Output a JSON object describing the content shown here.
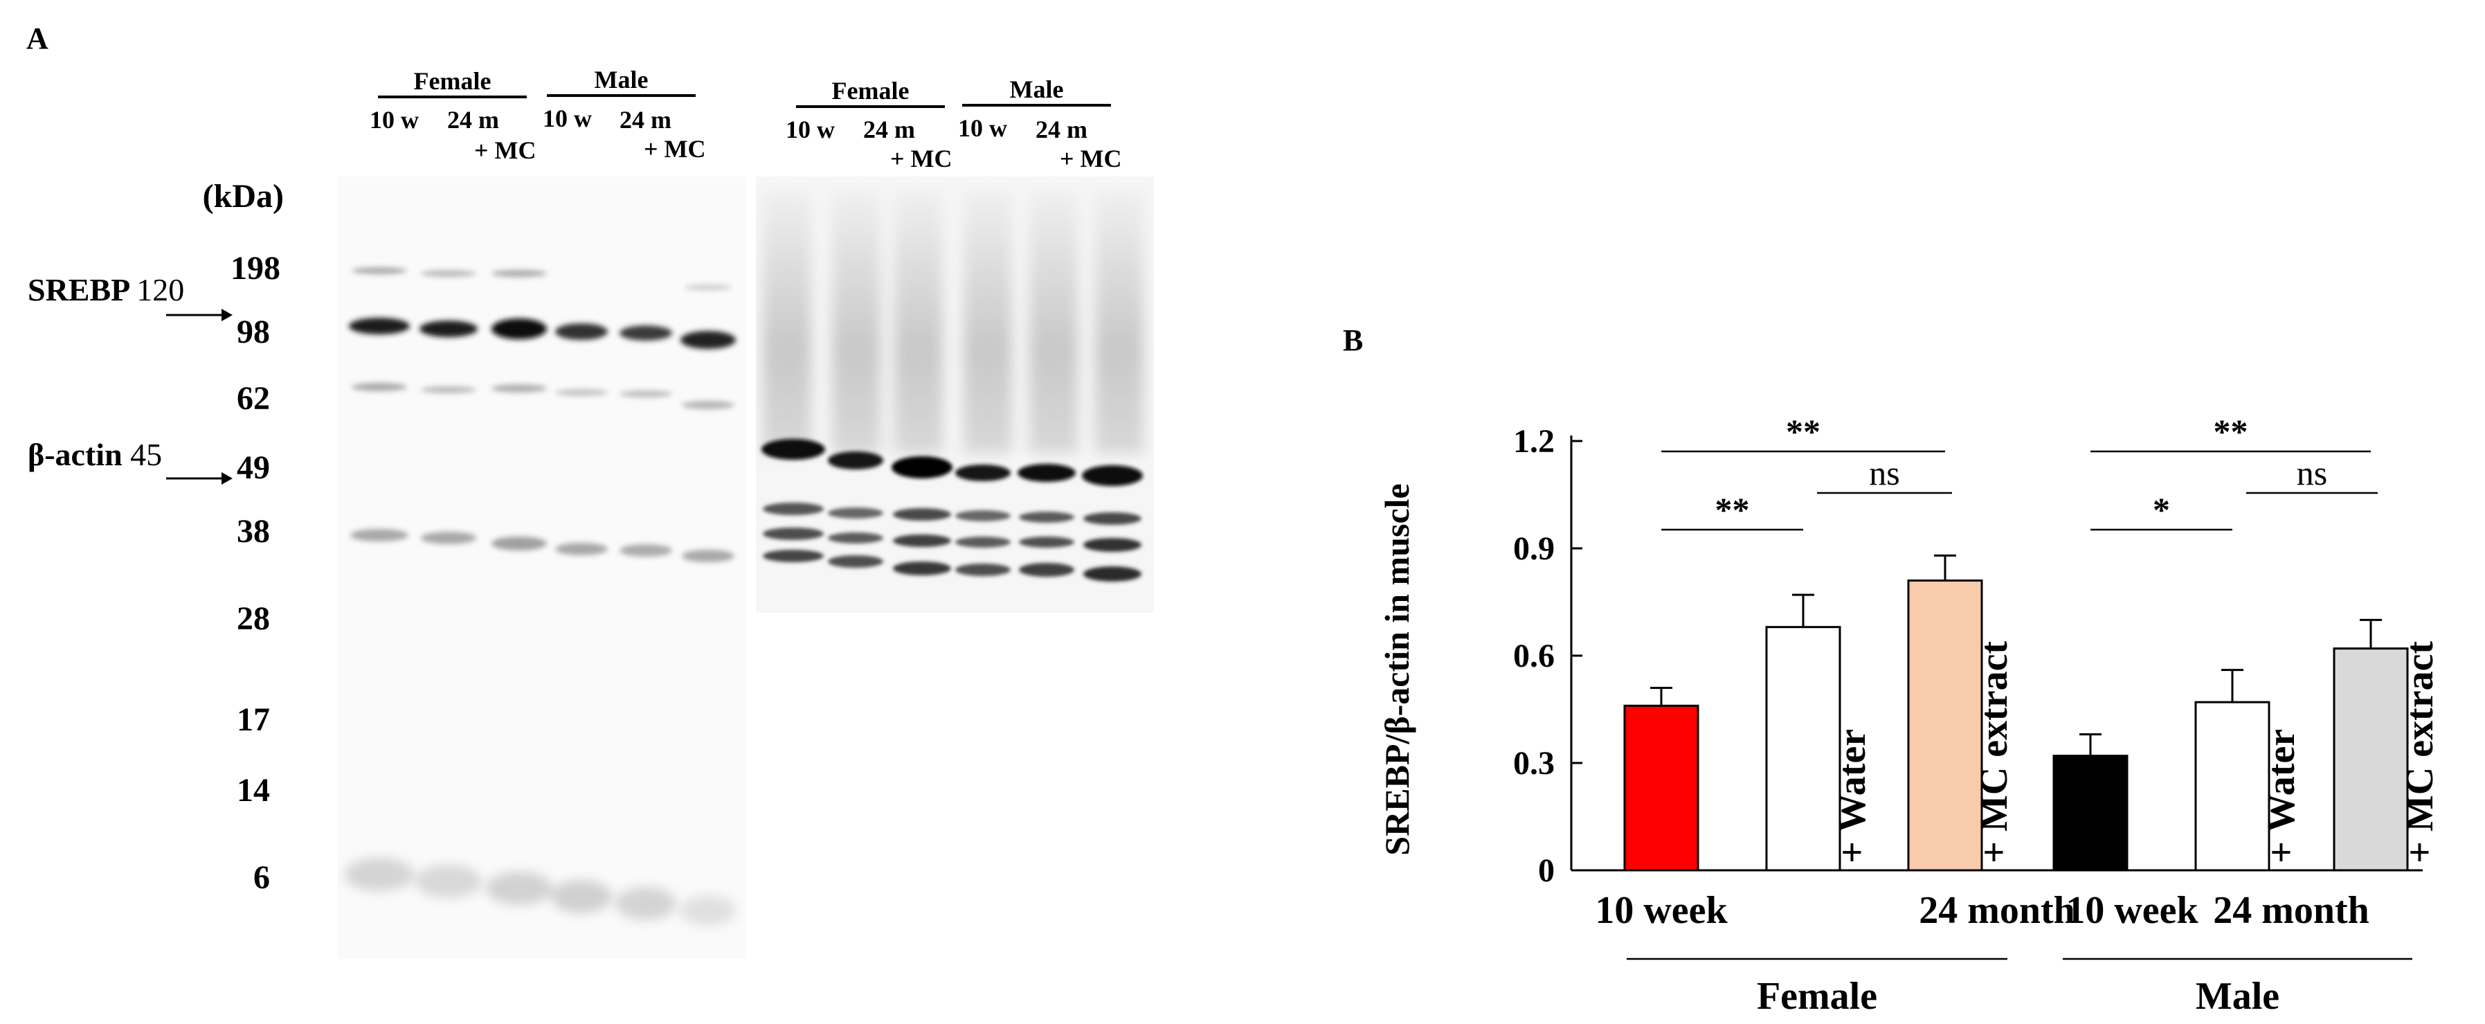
{
  "panel_a": {
    "letter": "A",
    "groups": [
      "Female",
      "Male",
      "Female",
      "Male"
    ],
    "lanes": [
      "10 w",
      "24 m",
      "+ MC",
      "10 w",
      "24 m",
      "+ MC",
      "10 w",
      "24 m",
      "+ MC",
      "10 w",
      "24 m",
      "+ MC"
    ],
    "kda_label": "(kDa)",
    "markers": [
      "198",
      "98",
      "62",
      "49",
      "38",
      "28",
      "17",
      "14",
      "6"
    ],
    "proteins": [
      {
        "name": "SREBP",
        "size": "120"
      },
      {
        "name": "β-actin",
        "size": "45"
      }
    ]
  },
  "panel_b": {
    "letter": "B"
  },
  "chart_data": {
    "type": "bar",
    "ylabel": "SREBP/β-actin in muscle",
    "ylim": [
      0,
      1.2
    ],
    "yticks": [
      "0",
      "0.3",
      "0.6",
      "0.9",
      "1.2"
    ],
    "bars": [
      {
        "group": "Female",
        "value": 0.46,
        "error": 0.05,
        "color": "#ff0000",
        "label": ""
      },
      {
        "group": "Female",
        "value": 0.68,
        "error": 0.09,
        "color": "#ffffff",
        "label": "+ Water"
      },
      {
        "group": "Female",
        "value": 0.81,
        "error": 0.07,
        "color": "#f8cbad",
        "label": "+ MC extract"
      },
      {
        "group": "Male",
        "value": 0.32,
        "error": 0.06,
        "color": "#000000",
        "label": ""
      },
      {
        "group": "Male",
        "value": 0.47,
        "error": 0.09,
        "color": "#ffffff",
        "label": "+ Water"
      },
      {
        "group": "Male",
        "value": 0.62,
        "error": 0.08,
        "color": "#d9d9d9",
        "label": "+ MC extract"
      }
    ],
    "age_labels": [
      "10 week",
      "24 month",
      "10 week",
      "24 month"
    ],
    "group_labels": [
      "Female",
      "Male"
    ],
    "significance": [
      {
        "from": 0,
        "to": 2,
        "label": "**"
      },
      {
        "from": 0,
        "to": 1,
        "label": "**"
      },
      {
        "from": 1,
        "to": 2,
        "label": "ns"
      },
      {
        "from": 3,
        "to": 5,
        "label": "**"
      },
      {
        "from": 3,
        "to": 4,
        "label": "*"
      },
      {
        "from": 4,
        "to": 5,
        "label": "ns"
      }
    ]
  }
}
